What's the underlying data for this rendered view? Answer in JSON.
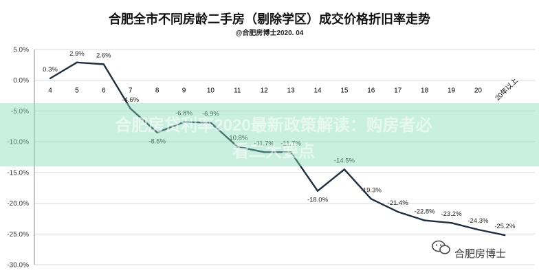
{
  "chart_data": {
    "type": "line",
    "title": "合肥全市不同房龄二手房（剔除学区）成交价格折旧率走势",
    "subtitle": "@合肥房博士2020. 04",
    "xlabel": "",
    "ylabel": "",
    "categories": [
      "4",
      "5",
      "6",
      "7",
      "8",
      "9",
      "10",
      "11",
      "12",
      "13",
      "14",
      "15",
      "16",
      "17",
      "18",
      "19",
      "20",
      "20年以上"
    ],
    "series": [
      {
        "values": [
          0.3,
          2.9,
          2.6,
          -4.6,
          -8.5,
          -6.8,
          -6.9,
          -10.8,
          -11.7,
          -11.7,
          -18.0,
          -14.5,
          -19.3,
          -21.4,
          -22.8,
          -23.2,
          -24.3,
          -25.2
        ],
        "labels": [
          "0.3%",
          "2.9%",
          "2.6%",
          "-4.6%",
          "-8.5%",
          "-6.8%",
          "-6.9%",
          "-10.8%",
          "-11.7%",
          "-11.7%",
          "-18.0%",
          "-14.5%",
          "-19.3%",
          "-21.4%",
          "-22.8%",
          "-23.2%",
          "-24.3%",
          "-25.2%"
        ]
      }
    ],
    "ylim": [
      -30,
      5
    ],
    "yticks": [
      5,
      0,
      -5,
      -10,
      -15,
      -20,
      -25,
      -30
    ],
    "ytick_labels": [
      "5.0%",
      "0.0%",
      "-5.0%",
      "-10.0%",
      "-15.0%",
      "-20.0%",
      "-25.0%",
      "-30.0%"
    ],
    "grid": "horizontal",
    "line_color": "#1f2d3d"
  },
  "overlay": {
    "line1": "合肥房贷利率2020最新政策解读：购房者必",
    "line2": "看二大要点",
    "band_color": "#7fd8b6"
  },
  "watermark": {
    "icon": "wechat-icon",
    "text": "合肥房博士"
  }
}
